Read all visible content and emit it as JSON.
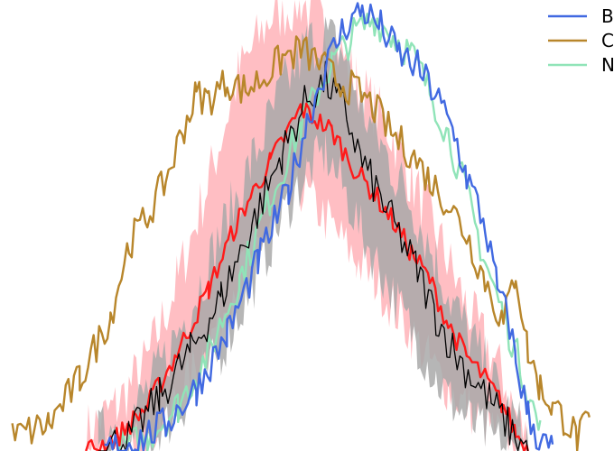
{
  "chart_data": {
    "type": "line",
    "title": "",
    "xlabel": "",
    "ylabel": "",
    "axes_visible": false,
    "grid": false,
    "xlim": [
      0,
      100
    ],
    "ylim": [
      0,
      100
    ],
    "legend": {
      "placement": "top-right",
      "entries": [
        {
          "label": "B",
          "color": "#4169e1"
        },
        {
          "label": "C",
          "color": "#b8862b"
        },
        {
          "label": "N",
          "color": "#90e4b8"
        }
      ]
    },
    "series": [
      {
        "name": "B",
        "color": "#4169e1",
        "style": "line",
        "x": [
          17,
          22,
          27,
          32,
          37,
          42,
          47,
          50,
          53,
          56,
          59,
          62,
          65,
          68,
          71,
          74,
          76,
          79,
          81,
          83,
          84,
          86,
          88,
          90
        ],
        "y": [
          0,
          2,
          6,
          14,
          26,
          42,
          58,
          73,
          85,
          94,
          98,
          94,
          88,
          85,
          79,
          70,
          61,
          50,
          36,
          28,
          20,
          8,
          2,
          0
        ]
      },
      {
        "name": "C",
        "color": "#b8862b",
        "style": "line",
        "x": [
          2,
          8,
          13,
          18,
          21,
          24,
          27,
          30,
          32,
          34,
          37,
          40,
          43,
          46,
          49,
          52,
          55,
          58,
          61,
          64,
          67,
          70,
          73,
          76,
          79,
          82,
          84,
          86,
          88,
          90,
          92,
          94,
          96
        ],
        "y": [
          3,
          6,
          16,
          30,
          46,
          52,
          60,
          72,
          79,
          78,
          82,
          80,
          83,
          87,
          89,
          86,
          82,
          80,
          76,
          70,
          66,
          60,
          55,
          48,
          38,
          28,
          40,
          22,
          14,
          10,
          7,
          3,
          6
        ]
      },
      {
        "name": "N",
        "color": "#90e4b8",
        "style": "line",
        "x": [
          19,
          24,
          29,
          34,
          39,
          44,
          49,
          54,
          58,
          61,
          64,
          67,
          70,
          73,
          76,
          79,
          82,
          85,
          88
        ],
        "y": [
          0,
          3,
          10,
          22,
          38,
          56,
          72,
          86,
          93,
          96,
          92,
          88,
          80,
          70,
          57,
          42,
          30,
          18,
          4
        ]
      },
      {
        "name": "",
        "color": "#ff1a1a",
        "style": "line",
        "x": [
          14,
          19,
          24,
          29,
          34,
          39,
          44,
          49,
          54,
          58,
          61,
          64,
          67,
          70,
          73,
          76,
          79,
          82,
          84,
          86
        ],
        "y": [
          0,
          3,
          10,
          22,
          36,
          52,
          64,
          76,
          71,
          62,
          57,
          51,
          44,
          38,
          28,
          21,
          16,
          10,
          4,
          0
        ]
      },
      {
        "name": "",
        "color": "#ffb3b8",
        "style": "band",
        "x": [
          14,
          19,
          24,
          29,
          34,
          39,
          44,
          49,
          54,
          58,
          61,
          64,
          67,
          70,
          73,
          76,
          79,
          82,
          84,
          86
        ],
        "low": [
          0,
          0,
          3,
          12,
          24,
          40,
          50,
          58,
          50,
          42,
          38,
          32,
          26,
          20,
          14,
          10,
          6,
          3,
          0,
          0
        ],
        "high": [
          4,
          10,
          20,
          38,
          60,
          84,
          96,
          100,
          92,
          82,
          76,
          70,
          60,
          52,
          42,
          32,
          24,
          16,
          8,
          2
        ]
      },
      {
        "name": "",
        "color": "#000000",
        "style": "line",
        "x": [
          16,
          21,
          26,
          31,
          36,
          41,
          46,
          50,
          53,
          56,
          59,
          62,
          65,
          68,
          71,
          74,
          77,
          80,
          83,
          86
        ],
        "y": [
          0,
          3,
          12,
          22,
          34,
          50,
          66,
          78,
          82,
          76,
          64,
          56,
          48,
          40,
          30,
          22,
          16,
          11,
          5,
          0
        ]
      },
      {
        "name": "",
        "color": "#a9a9a9",
        "style": "band",
        "x": [
          16,
          21,
          26,
          31,
          36,
          41,
          46,
          50,
          53,
          56,
          59,
          62,
          65,
          68,
          71,
          74,
          77,
          80,
          83,
          86
        ],
        "low": [
          0,
          0,
          4,
          12,
          22,
          36,
          52,
          62,
          66,
          58,
          48,
          40,
          32,
          24,
          16,
          10,
          6,
          3,
          0,
          0
        ],
        "high": [
          3,
          7,
          18,
          32,
          48,
          64,
          80,
          90,
          92,
          88,
          76,
          68,
          60,
          52,
          42,
          32,
          24,
          16,
          8,
          2
        ]
      }
    ]
  }
}
